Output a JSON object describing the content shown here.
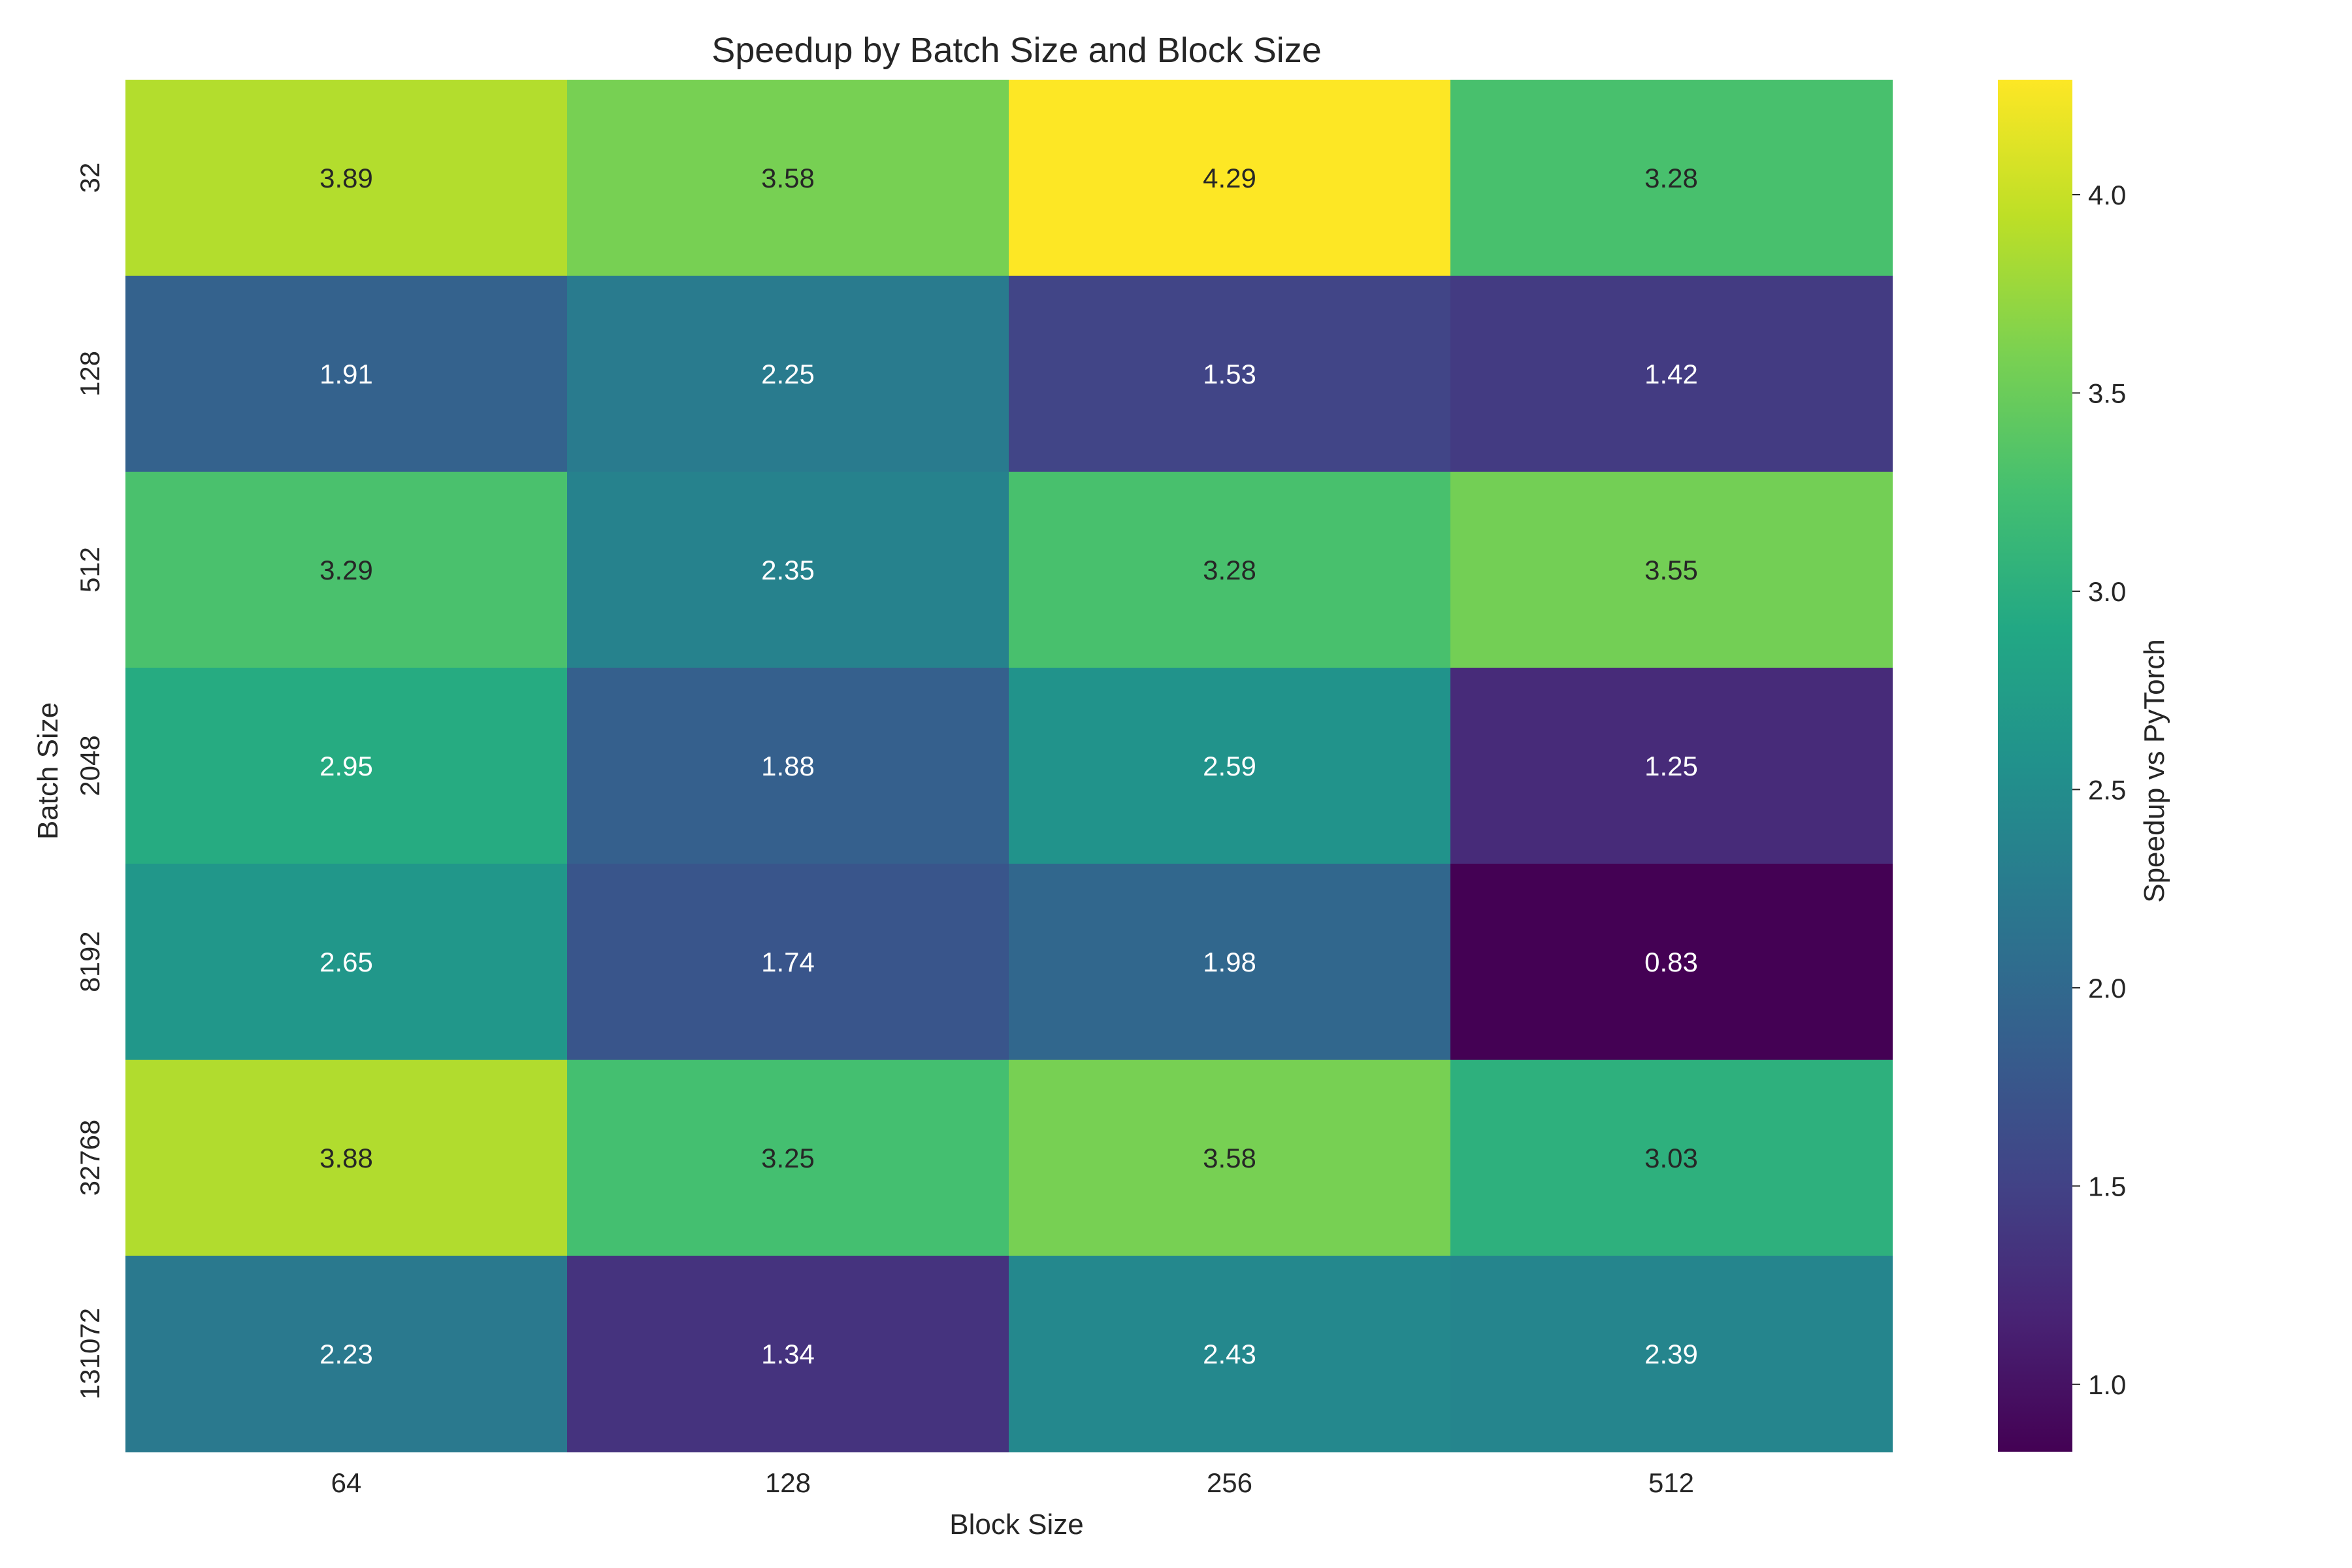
{
  "chart_data": {
    "type": "heatmap",
    "title": "Speedup by Batch Size and Block Size",
    "xlabel": "Block Size",
    "ylabel": "Batch Size",
    "x_categories": [
      "64",
      "128",
      "256",
      "512"
    ],
    "y_categories": [
      "32",
      "128",
      "512",
      "2048",
      "8192",
      "32768",
      "131072"
    ],
    "values": [
      [
        3.89,
        3.58,
        4.29,
        3.28
      ],
      [
        1.91,
        2.25,
        1.53,
        1.42
      ],
      [
        3.29,
        2.35,
        3.28,
        3.55
      ],
      [
        2.95,
        1.88,
        2.59,
        1.25
      ],
      [
        2.65,
        1.74,
        1.98,
        0.83
      ],
      [
        3.88,
        3.25,
        3.58,
        3.03
      ],
      [
        2.23,
        1.34,
        2.43,
        2.39
      ]
    ],
    "colormap": "viridis",
    "vmin": 0.83,
    "vmax": 4.29,
    "colorbar": {
      "label": "Speedup vs PyTorch",
      "ticks": [
        1.0,
        1.5,
        2.0,
        2.5,
        3.0,
        3.5,
        4.0
      ]
    },
    "value_format": "2 decimals",
    "grid": false
  }
}
